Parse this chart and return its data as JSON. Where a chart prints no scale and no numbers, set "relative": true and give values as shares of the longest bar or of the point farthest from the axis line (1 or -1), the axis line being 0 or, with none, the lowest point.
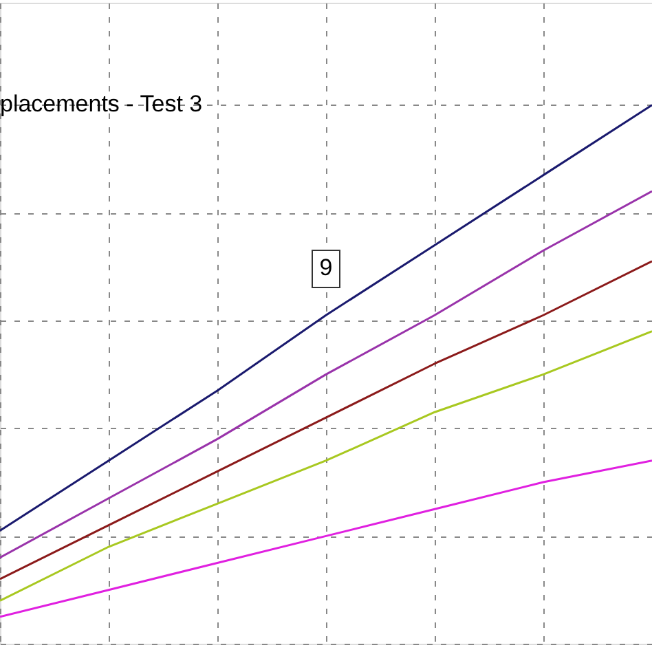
{
  "chart_data": {
    "type": "line",
    "relative": true,
    "title": "placements - Test 3",
    "annotations": [
      "9"
    ],
    "categories": [
      null,
      null,
      null,
      null,
      null,
      null,
      null
    ],
    "series": [
      {
        "color": "#1a1a6e",
        "values": [
          0.21,
          0.34,
          0.47,
          0.61,
          0.74,
          0.87,
          1.0
        ]
      },
      {
        "color": "#9933aa",
        "values": [
          0.16,
          0.27,
          0.38,
          0.5,
          0.61,
          0.73,
          0.84
        ]
      },
      {
        "color": "#8b1a1a",
        "values": [
          0.12,
          0.22,
          0.32,
          0.42,
          0.52,
          0.61,
          0.71
        ]
      },
      {
        "color": "#a8c820",
        "values": [
          0.08,
          0.18,
          0.26,
          0.34,
          0.43,
          0.5,
          0.58
        ]
      },
      {
        "color": "#e020e0",
        "values": [
          0.05,
          0.1,
          0.15,
          0.2,
          0.25,
          0.3,
          0.34
        ]
      }
    ],
    "grid": true,
    "tick_labels": false,
    "marker": "none",
    "line_style": "solid"
  }
}
